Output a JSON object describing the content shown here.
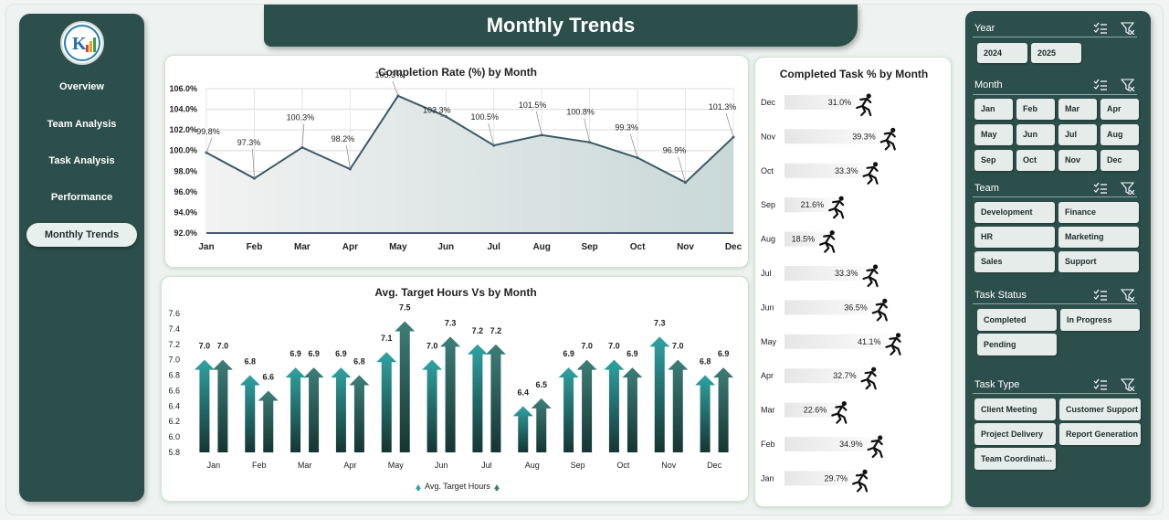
{
  "nav": {
    "items": [
      "Overview",
      "Team Analysis",
      "Task  Analysis",
      "Performance",
      "Monthly Trends"
    ]
  },
  "header": {
    "title": "Monthly Trends"
  },
  "filters": {
    "year": {
      "title": "Year",
      "options": [
        "2024",
        "2025"
      ]
    },
    "month": {
      "title": "Month",
      "options": [
        "Jan",
        "Feb",
        "Mar",
        "Apr",
        "May",
        "Jun",
        "Jul",
        "Aug",
        "Sep",
        "Oct",
        "Nov",
        "Dec"
      ]
    },
    "team": {
      "title": "Team",
      "options": [
        "Development",
        "Finance",
        "HR",
        "Marketing",
        "Sales",
        "Support"
      ]
    },
    "task_status": {
      "title": "Task Status",
      "options": [
        "Completed",
        "In Progress",
        "Pending"
      ]
    },
    "task_type": {
      "title": "Task Type",
      "options": [
        "Client Meeting",
        "Customer Support",
        "Project Delivery",
        "Report Generation",
        "Team Coordinati..."
      ]
    }
  },
  "colors": {
    "dark_teal": "#2d4f4b",
    "line": "#3a5a66",
    "arrow_light": "#2fa3a3",
    "arrow_dark": "#3e7e78"
  },
  "chart_data": [
    {
      "type": "area",
      "title": "Completion Rate (%) by Month",
      "categories": [
        "Jan",
        "Feb",
        "Mar",
        "Apr",
        "May",
        "Jun",
        "Jul",
        "Aug",
        "Sep",
        "Oct",
        "Nov",
        "Dec"
      ],
      "values": [
        99.8,
        97.3,
        100.3,
        98.2,
        105.3,
        103.3,
        100.5,
        101.5,
        100.8,
        99.3,
        96.9,
        101.3
      ],
      "value_labels": [
        "99.8%",
        "97.3%",
        "100.3%",
        "98.2%",
        "105.3%",
        "103.3%",
        "100.5%",
        "101.5%",
        "100.8%",
        "99.3%",
        "96.9%",
        "101.3%"
      ],
      "y_ticks": [
        "92.0%",
        "94.0%",
        "96.0%",
        "98.0%",
        "100.0%",
        "102.0%",
        "104.0%",
        "106.0%"
      ],
      "ylim": [
        92,
        106
      ],
      "grid": true
    },
    {
      "type": "bar",
      "title": "Avg. Target Hours Vs  by Month",
      "categories": [
        "Jan",
        "Feb",
        "Mar",
        "Apr",
        "May",
        "Jun",
        "Jul",
        "Aug",
        "Sep",
        "Oct",
        "Nov",
        "Dec"
      ],
      "series": [
        {
          "name": "Avg. Target Hours",
          "values": [
            7.0,
            6.8,
            6.9,
            6.9,
            7.1,
            7.0,
            7.2,
            6.4,
            6.9,
            7.0,
            7.3,
            6.8
          ]
        },
        {
          "name": "",
          "values": [
            7.0,
            6.6,
            6.9,
            6.8,
            7.5,
            7.3,
            7.2,
            6.5,
            7.0,
            6.9,
            7.0,
            6.9
          ]
        }
      ],
      "y_ticks": [
        "5.8",
        "6.0",
        "6.2",
        "6.4",
        "6.6",
        "6.8",
        "7.0",
        "7.2",
        "7.4",
        "7.6"
      ],
      "ylim": [
        5.8,
        7.6
      ],
      "legend": "bottom"
    },
    {
      "type": "bar",
      "orientation": "horizontal",
      "title": "Completed Task % by Month",
      "categories": [
        "Dec",
        "Nov",
        "Oct",
        "Sep",
        "Aug",
        "Jul",
        "Jun",
        "May",
        "Apr",
        "Mar",
        "Feb",
        "Jan"
      ],
      "values": [
        31.0,
        39.3,
        33.3,
        21.6,
        18.5,
        33.3,
        36.5,
        41.1,
        32.7,
        22.6,
        34.9,
        29.7
      ],
      "value_labels": [
        "31.0%",
        "39.3%",
        "33.3%",
        "21.6%",
        "18.5%",
        "33.3%",
        "36.5%",
        "41.1%",
        "32.7%",
        "22.6%",
        "34.9%",
        "29.7%"
      ],
      "icon": "runner-icon"
    }
  ]
}
